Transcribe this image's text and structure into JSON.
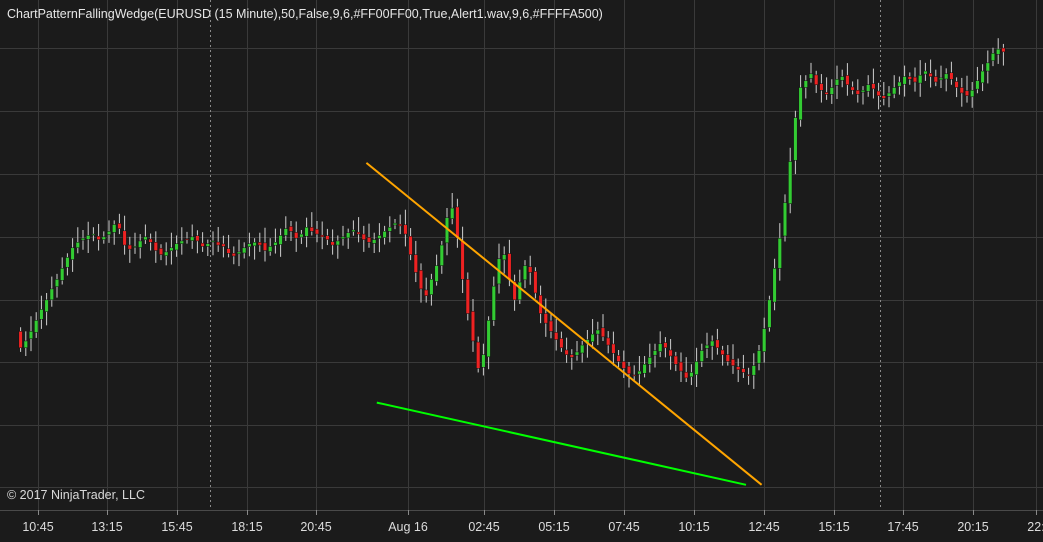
{
  "indicator_label": "ChartPatternFallingWedge(EURUSD (15 Minute),50,False,9,6,#FF00FF00,True,Alert1.wav,9,6,#FFFFA500)",
  "copyright": "© 2017 NinjaTrader, LLC",
  "colors": {
    "background": "#1b1b1b",
    "grid": "#3a3a3a",
    "up_candle": "#33cc33",
    "down_candle": "#ee2222",
    "wick": "#cfcfcf",
    "resistance_line": "#ffa500",
    "support_line": "#00ff00",
    "axis_text": "#dcdcdc"
  },
  "chart_data": {
    "type": "candlestick",
    "symbol": "EURUSD",
    "timeframe": "15 Minute",
    "x_tick_labels": [
      "10:45",
      "13:15",
      "15:45",
      "18:15",
      "20:45",
      "Aug 16",
      "02:45",
      "05:15",
      "07:45",
      "10:15",
      "12:45",
      "15:15",
      "17:45",
      "20:15",
      "22:"
    ],
    "session_breaks": [
      "Aug 16",
      "17:00"
    ],
    "grid": true,
    "closes": [
      60,
      65,
      72,
      80,
      88,
      95,
      103,
      110,
      118,
      126,
      133,
      137,
      140,
      142,
      143,
      139,
      141,
      145,
      150,
      147,
      135,
      132,
      134,
      138,
      141,
      137,
      131,
      128,
      130,
      133,
      136,
      138,
      139,
      141,
      138,
      134,
      136,
      138,
      135,
      134,
      129,
      127,
      130,
      133,
      136,
      137,
      135,
      131,
      134,
      137,
      142,
      147,
      145,
      140,
      143,
      148,
      145,
      143,
      141,
      139,
      135,
      138,
      141,
      144,
      146,
      143,
      139,
      137,
      139,
      142,
      145,
      148,
      151,
      149,
      143,
      128,
      115,
      103,
      98,
      110,
      120,
      135,
      155,
      162,
      140,
      110,
      85,
      65,
      45,
      55,
      80,
      105,
      125,
      128,
      110,
      95,
      108,
      120,
      115,
      100,
      85,
      78,
      72,
      66,
      60,
      55,
      53,
      57,
      62,
      66,
      70,
      73,
      68,
      62,
      56,
      50,
      45,
      41,
      40,
      43,
      48,
      53,
      58,
      63,
      60,
      54,
      48,
      43,
      38,
      42,
      50,
      58,
      62,
      65,
      60,
      55,
      50,
      47,
      44,
      42,
      40,
      47,
      58,
      74,
      95,
      118,
      140,
      166,
      196,
      228,
      250,
      255,
      260,
      252,
      248,
      245,
      250,
      256,
      258,
      252,
      248,
      245,
      248,
      252,
      249,
      244,
      242,
      246,
      250,
      254,
      258,
      256,
      254,
      259,
      262,
      258,
      254,
      257,
      260,
      256,
      250,
      246,
      244,
      248,
      255,
      262,
      268,
      275,
      278,
      276
    ],
    "resistance_line": [
      {
        "bar": 67,
        "price": 195
      },
      {
        "bar": 143,
        "price": -40
      }
    ],
    "support_line": [
      {
        "bar": 69,
        "price": 20
      },
      {
        "bar": 140,
        "price": -40
      }
    ]
  }
}
